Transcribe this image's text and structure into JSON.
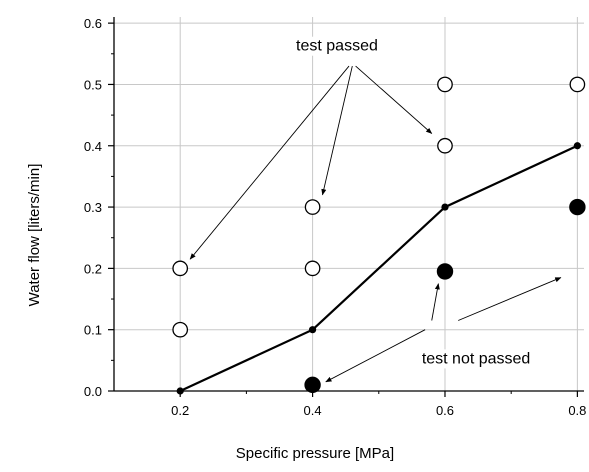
{
  "chart_data": {
    "type": "scatter",
    "title": "",
    "xlabel": "Specific pressure [MPa]",
    "ylabel": "Water flow [liters/min]",
    "xlim": [
      0.1,
      0.81
    ],
    "ylim": [
      0.0,
      0.61
    ],
    "grid": true,
    "x_ticks": [
      {
        "value": 0.2,
        "label": "0.2"
      },
      {
        "value": 0.4,
        "label": "0.4"
      },
      {
        "value": 0.6,
        "label": "0.6"
      },
      {
        "value": 0.8,
        "label": "0.8"
      }
    ],
    "y_ticks": [
      {
        "value": 0.0,
        "label": "0.0"
      },
      {
        "value": 0.1,
        "label": "0.1"
      },
      {
        "value": 0.2,
        "label": "0.2"
      },
      {
        "value": 0.3,
        "label": "0.3"
      },
      {
        "value": 0.4,
        "label": "0.4"
      },
      {
        "value": 0.5,
        "label": "0.5"
      },
      {
        "value": 0.6,
        "label": "0.6"
      }
    ],
    "series": [
      {
        "style": "line-with-small-markers",
        "color": "#000000",
        "points": [
          {
            "x": 0.2,
            "y": 0.0
          },
          {
            "x": 0.4,
            "y": 0.1
          },
          {
            "x": 0.6,
            "y": 0.3
          },
          {
            "x": 0.8,
            "y": 0.4
          }
        ]
      },
      {
        "style": "open-circles",
        "color": "#000000",
        "points": [
          {
            "x": 0.2,
            "y": 0.1
          },
          {
            "x": 0.2,
            "y": 0.2
          },
          {
            "x": 0.4,
            "y": 0.2
          },
          {
            "x": 0.4,
            "y": 0.3
          },
          {
            "x": 0.6,
            "y": 0.4
          },
          {
            "x": 0.6,
            "y": 0.5
          },
          {
            "x": 0.8,
            "y": 0.5
          }
        ]
      },
      {
        "style": "filled-circles",
        "color": "#000000",
        "points": [
          {
            "x": 0.4,
            "y": 0.01
          },
          {
            "x": 0.6,
            "y": 0.195
          },
          {
            "x": 0.8,
            "y": 0.3
          }
        ]
      }
    ],
    "annotations": [
      {
        "text": "test passed",
        "x": 0.375,
        "y": 0.555,
        "anchor": "start",
        "arrows": [
          {
            "from": {
              "x": 0.455,
              "y": 0.53
            },
            "to": {
              "x": 0.215,
              "y": 0.215
            }
          },
          {
            "from": {
              "x": 0.46,
              "y": 0.53
            },
            "to": {
              "x": 0.415,
              "y": 0.32
            }
          },
          {
            "from": {
              "x": 0.465,
              "y": 0.53
            },
            "to": {
              "x": 0.58,
              "y": 0.42
            }
          }
        ]
      },
      {
        "text": "test not passed",
        "x": 0.565,
        "y": 0.045,
        "anchor": "start",
        "arrows": [
          {
            "from": {
              "x": 0.57,
              "y": 0.1
            },
            "to": {
              "x": 0.42,
              "y": 0.015
            }
          },
          {
            "from": {
              "x": 0.58,
              "y": 0.115
            },
            "to": {
              "x": 0.59,
              "y": 0.175
            }
          },
          {
            "from": {
              "x": 0.62,
              "y": 0.115
            },
            "to": {
              "x": 0.775,
              "y": 0.185
            }
          }
        ]
      }
    ]
  }
}
